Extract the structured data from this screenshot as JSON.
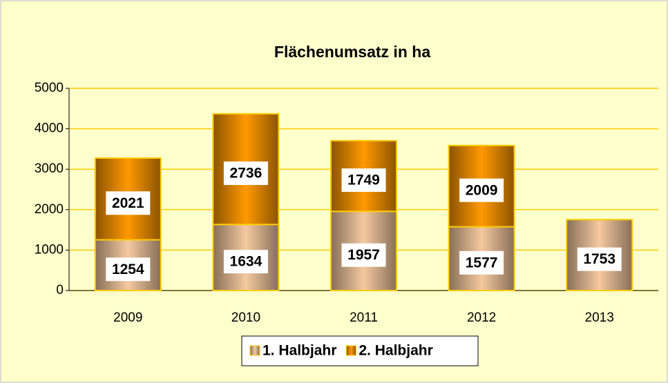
{
  "chart_data": {
    "type": "stacked_bar",
    "title": "Flächenumsatz in ha",
    "categories": [
      "2009",
      "2010",
      "2011",
      "2012",
      "2013"
    ],
    "series": [
      {
        "name": "1. Halbjahr",
        "color": "#f5c9a0",
        "values": [
          1254,
          1634,
          1957,
          1577,
          1753
        ]
      },
      {
        "name": "2. Halbjahr",
        "color": "#ff9900",
        "values": [
          2021,
          2736,
          1749,
          2009,
          null
        ]
      }
    ],
    "ylim": [
      0,
      5000
    ],
    "yticks": [
      0,
      1000,
      2000,
      3000,
      4000,
      5000
    ],
    "grid": true,
    "legend": "bottom"
  }
}
